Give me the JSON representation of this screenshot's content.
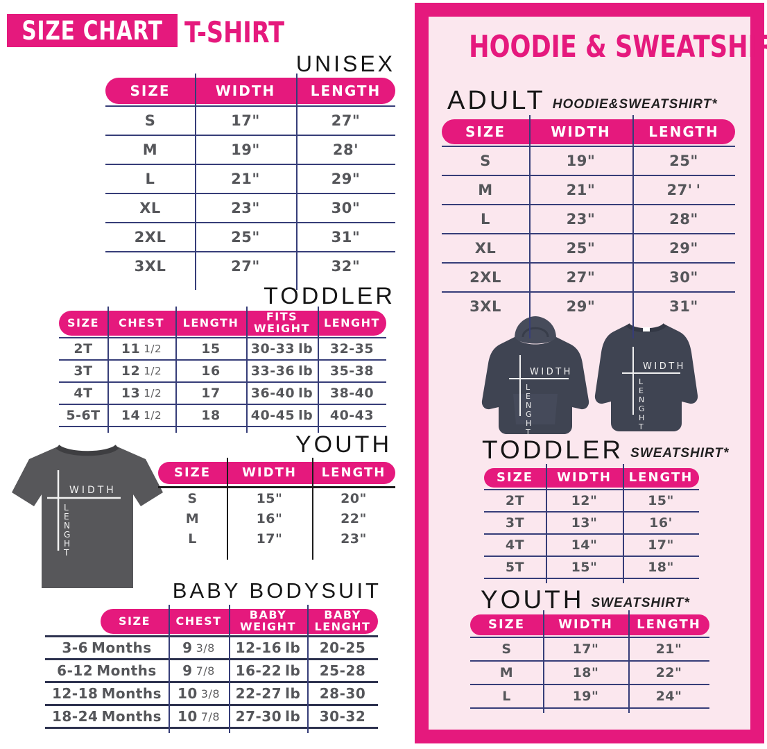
{
  "colors": {
    "pink": "#E5197D",
    "panel_background": "#FBE7EE",
    "table_line_navy": "#363D78",
    "cell_text_gray": "#55565A",
    "tee_gray": "#57575A",
    "hoodie_navy": "#3F4452"
  },
  "left": {
    "badge": "SIZE CHART",
    "product": "T-SHIRT",
    "tshirt_label_width": "WIDTH",
    "tshirt_label_length": "LENGHT",
    "tables": {
      "unisex": {
        "heading": "UNISEX",
        "columns": [
          "SIZE",
          "WIDTH",
          "LENGTH"
        ],
        "rows": [
          [
            "S",
            "17\"",
            "27\""
          ],
          [
            "M",
            "19\"",
            "28'"
          ],
          [
            "L",
            "21\"",
            "29\""
          ],
          [
            "XL",
            "23\"",
            "30\""
          ],
          [
            "2XL",
            "25\"",
            "31\""
          ],
          [
            "3XL",
            "27\"",
            "32\""
          ]
        ]
      },
      "toddler": {
        "heading": "TODDLER",
        "columns": [
          "SIZE",
          "CHEST",
          "LENGTH",
          "FITS\nWEIGHT",
          "LENGHT"
        ],
        "rows": [
          [
            "2T",
            "11 1/2",
            "15",
            "30-33 lb",
            "32-35"
          ],
          [
            "3T",
            "12 1/2",
            "16",
            "33-36 lb",
            "35-38"
          ],
          [
            "4T",
            "13 1/2",
            "17",
            "36-40 lb",
            "38-40"
          ],
          [
            "5-6T",
            "14 1/2",
            "18",
            "40-45 lb",
            "40-43"
          ]
        ]
      },
      "youth": {
        "heading": "YOUTH",
        "columns": [
          "SIZE",
          "WIDTH",
          "LENGTH"
        ],
        "rows": [
          [
            "S",
            "15\"",
            "20\""
          ],
          [
            "M",
            "16\"",
            "22\""
          ],
          [
            "L",
            "17\"",
            "23\""
          ]
        ]
      },
      "baby": {
        "heading": "BABY BODYSUIT",
        "columns": [
          "SIZE",
          "CHEST",
          "BABY\nWEIGHT",
          "BABY\nLENGHT"
        ],
        "rows": [
          [
            "3-6 Months",
            "9 3/8",
            "12-16 lb",
            "20-25"
          ],
          [
            "6-12 Months",
            "9 7/8",
            "16-22 lb",
            "25-28"
          ],
          [
            "12-18 Months",
            "10 3/8",
            "22-27 lb",
            "28-30"
          ],
          [
            "18-24 Months",
            "10 7/8",
            "27-30 lb",
            "30-32"
          ]
        ]
      }
    }
  },
  "right": {
    "title": "HOODIE & SWEATSHIRT",
    "garment_label_width": "WIDTH",
    "garment_label_length": "LENGHT",
    "sections": {
      "adult": {
        "heading": "ADULT",
        "subheading": "HOODIE&SWEATSHIRT*",
        "columns": [
          "SIZE",
          "WIDTH",
          "LENGTH"
        ],
        "rows": [
          [
            "S",
            "19\"",
            "25\""
          ],
          [
            "M",
            "21\"",
            "27' '"
          ],
          [
            "L",
            "23\"",
            "28\""
          ],
          [
            "XL",
            "25\"",
            "29\""
          ],
          [
            "2XL",
            "27\"",
            "30\""
          ],
          [
            "3XL",
            "29\"",
            "31\""
          ]
        ]
      },
      "toddler": {
        "heading": "TODDLER",
        "subheading": "SWEATSHIRT*",
        "columns": [
          "SIZE",
          "WIDTH",
          "LENGTH"
        ],
        "rows": [
          [
            "2T",
            "12\"",
            "15\""
          ],
          [
            "3T",
            "13\"",
            "16'"
          ],
          [
            "4T",
            "14\"",
            "17\""
          ],
          [
            "5T",
            "15\"",
            "18\""
          ]
        ]
      },
      "youth": {
        "heading": "YOUTH",
        "subheading": "SWEATSHIRT*",
        "columns": [
          "SIZE",
          "WIDTH",
          "LENGTH"
        ],
        "rows": [
          [
            "S",
            "17\"",
            "21\""
          ],
          [
            "M",
            "18\"",
            "22\""
          ],
          [
            "L",
            "19\"",
            "24\""
          ]
        ]
      }
    }
  }
}
